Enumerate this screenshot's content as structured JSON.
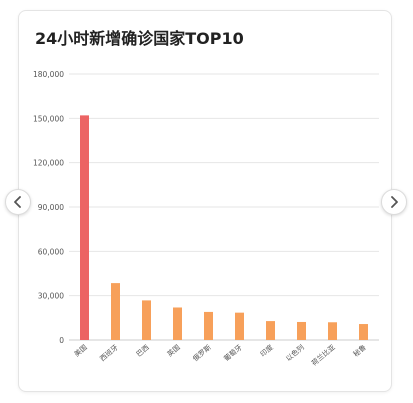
{
  "chart_data": {
    "type": "bar",
    "title": "24小时新增确诊国家TOP10",
    "categories": [
      "美国",
      "西班牙",
      "巴西",
      "英国",
      "俄罗斯",
      "葡萄牙",
      "印度",
      "以色列",
      "荷兰比亚",
      "秘鲁"
    ],
    "values": [
      152000,
      38500,
      26800,
      22000,
      19000,
      18500,
      12800,
      12200,
      12000,
      10800
    ],
    "yticks": [
      "0",
      "30,000",
      "60,000",
      "90,000",
      "120,000",
      "150,000",
      "180,000"
    ],
    "ylim": [
      0,
      180000
    ],
    "grid": true,
    "colors": {
      "highlight": "#ec6464",
      "bar": "#f7a05a",
      "grid": "#e6e6e6",
      "axis_text": "#555555"
    }
  },
  "nav": {
    "prev_icon": "chevron-left-icon",
    "next_icon": "chevron-right-icon"
  }
}
